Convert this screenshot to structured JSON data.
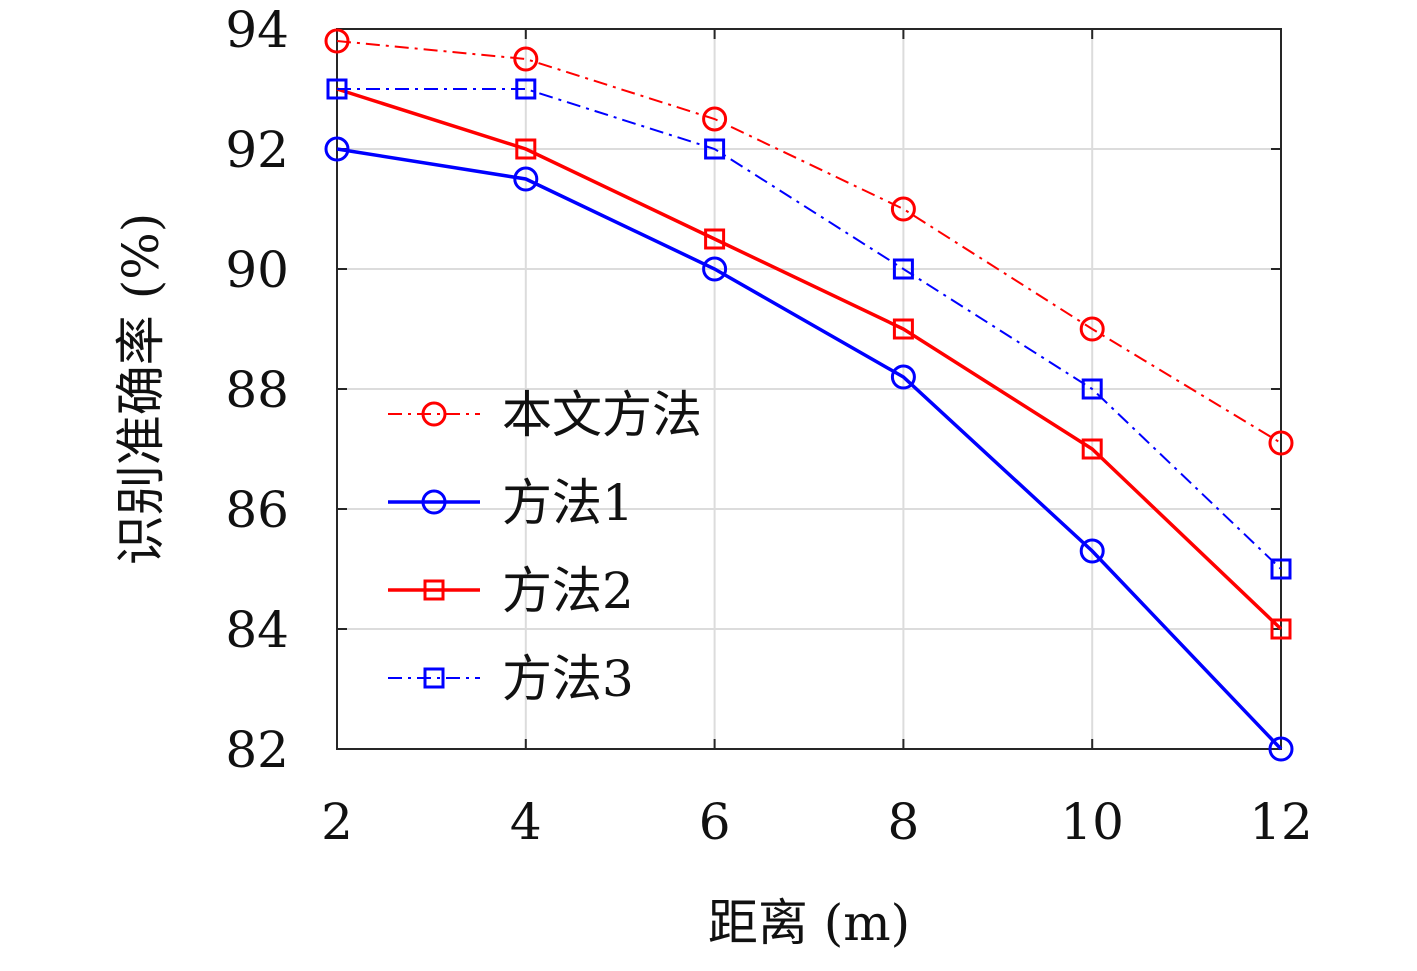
{
  "chart_data": {
    "type": "line",
    "xlabel": "距离 (m)",
    "ylabel": "识别准确率 (%)",
    "x": [
      2,
      4,
      6,
      8,
      10,
      12
    ],
    "xlim": [
      2,
      12
    ],
    "ylim": [
      82,
      94
    ],
    "xticks": [
      2,
      4,
      6,
      8,
      10,
      12
    ],
    "yticks": [
      82,
      84,
      86,
      88,
      90,
      92,
      94
    ],
    "grid": true,
    "legend_position": "center-left",
    "series": [
      {
        "name": "本文方法",
        "values": [
          93.8,
          93.5,
          92.5,
          91.0,
          89.0,
          87.1
        ],
        "color": "#ff0000",
        "marker": "circle",
        "line_style": "dash-dot"
      },
      {
        "name": "方法1",
        "values": [
          92.0,
          91.5,
          90.0,
          88.2,
          85.3,
          82.0
        ],
        "color": "#0000ff",
        "marker": "circle",
        "line_style": "solid"
      },
      {
        "name": "方法2",
        "values": [
          93.0,
          92.0,
          90.5,
          89.0,
          87.0,
          84.0
        ],
        "color": "#ff0000",
        "marker": "square",
        "line_style": "solid"
      },
      {
        "name": "方法3",
        "values": [
          93.0,
          93.0,
          92.0,
          90.0,
          88.0,
          85.0
        ],
        "color": "#0000ff",
        "marker": "square",
        "line_style": "dash-dot"
      }
    ]
  }
}
